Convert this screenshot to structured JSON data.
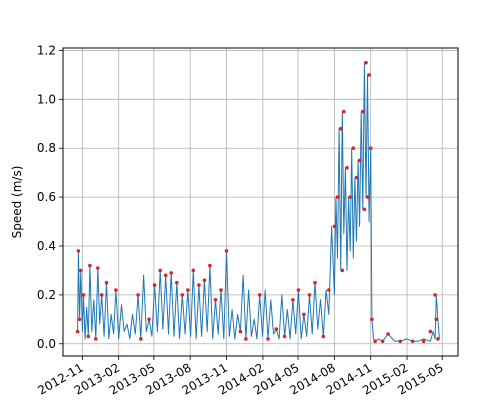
{
  "chart_data": {
    "type": "line",
    "title": "",
    "xlabel": "",
    "ylabel": "Speed (m/s)",
    "x_type": "date",
    "xlim": [
      "2012-09-13",
      "2015-06-10"
    ],
    "ylim": [
      -0.05,
      1.21
    ],
    "grid": true,
    "x_tick_labels": [
      "2012-11",
      "2013-02",
      "2013-05",
      "2013-08",
      "2013-11",
      "2014-02",
      "2014-05",
      "2014-08",
      "2014-11",
      "2015-02",
      "2015-05"
    ],
    "x_tick_values": [
      "2012-11-01",
      "2013-02-01",
      "2013-05-01",
      "2013-08-01",
      "2013-11-01",
      "2014-02-01",
      "2014-05-01",
      "2014-08-01",
      "2014-11-01",
      "2015-02-01",
      "2015-05-01"
    ],
    "y_ticks": [
      0.0,
      0.2,
      0.4,
      0.6,
      0.8,
      1.0,
      1.2
    ],
    "y_tick_labels": [
      "0.0",
      "0.2",
      "0.4",
      "0.6",
      "0.8",
      "1.0",
      "1.2"
    ],
    "series": [
      {
        "style": "line",
        "color": "#1f77b4",
        "x": [
          "2012-10-20",
          "2012-10-22",
          "2012-10-25",
          "2012-10-28",
          "2012-11-01",
          "2012-11-04",
          "2012-11-08",
          "2012-11-12",
          "2012-11-16",
          "2012-11-20",
          "2012-11-25",
          "2012-11-30",
          "2012-12-05",
          "2012-12-10",
          "2012-12-15",
          "2012-12-20",
          "2012-12-26",
          "2013-01-01",
          "2013-01-07",
          "2013-01-13",
          "2013-01-19",
          "2013-01-25",
          "2013-02-01",
          "2013-02-08",
          "2013-02-15",
          "2013-02-22",
          "2013-03-01",
          "2013-03-08",
          "2013-03-15",
          "2013-03-22",
          "2013-03-29",
          "2013-04-05",
          "2013-04-12",
          "2013-04-19",
          "2013-04-26",
          "2013-05-03",
          "2013-05-10",
          "2013-05-17",
          "2013-05-24",
          "2013-05-31",
          "2013-06-07",
          "2013-06-14",
          "2013-06-21",
          "2013-06-28",
          "2013-07-05",
          "2013-07-12",
          "2013-07-19",
          "2013-07-26",
          "2013-08-02",
          "2013-08-09",
          "2013-08-16",
          "2013-08-23",
          "2013-08-30",
          "2013-09-06",
          "2013-09-13",
          "2013-09-20",
          "2013-09-27",
          "2013-10-04",
          "2013-10-11",
          "2013-10-18",
          "2013-10-25",
          "2013-11-01",
          "2013-11-08",
          "2013-11-15",
          "2013-11-22",
          "2013-11-29",
          "2013-12-06",
          "2013-12-13",
          "2013-12-20",
          "2013-12-27",
          "2014-01-03",
          "2014-01-10",
          "2014-01-17",
          "2014-01-24",
          "2014-01-31",
          "2014-02-07",
          "2014-02-14",
          "2014-02-21",
          "2014-02-28",
          "2014-03-07",
          "2014-03-14",
          "2014-03-21",
          "2014-03-28",
          "2014-04-04",
          "2014-04-11",
          "2014-04-18",
          "2014-04-25",
          "2014-05-02",
          "2014-05-09",
          "2014-05-16",
          "2014-05-23",
          "2014-05-30",
          "2014-06-06",
          "2014-06-13",
          "2014-06-20",
          "2014-06-27",
          "2014-07-04",
          "2014-07-11",
          "2014-07-18",
          "2014-07-25",
          "2014-08-01",
          "2014-08-05",
          "2014-08-09",
          "2014-08-13",
          "2014-08-17",
          "2014-08-21",
          "2014-08-25",
          "2014-08-29",
          "2014-09-02",
          "2014-09-06",
          "2014-09-10",
          "2014-09-14",
          "2014-09-18",
          "2014-09-22",
          "2014-09-26",
          "2014-09-30",
          "2014-10-04",
          "2014-10-08",
          "2014-10-12",
          "2014-10-16",
          "2014-10-20",
          "2014-10-24",
          "2014-10-28",
          "2014-11-01",
          "2014-11-04",
          "2014-11-08",
          "2014-11-12",
          "2014-11-20",
          "2014-12-01",
          "2014-12-15",
          "2015-01-01",
          "2015-01-15",
          "2015-02-01",
          "2015-02-15",
          "2015-03-01",
          "2015-03-15",
          "2015-04-01",
          "2015-04-08",
          "2015-04-13",
          "2015-04-16",
          "2015-04-20",
          "2015-04-24"
        ],
        "y": [
          0.05,
          0.38,
          0.1,
          0.3,
          0.05,
          0.2,
          0.02,
          0.15,
          0.03,
          0.32,
          0.05,
          0.18,
          0.02,
          0.31,
          0.08,
          0.2,
          0.03,
          0.25,
          0.02,
          0.12,
          0.04,
          0.22,
          0.02,
          0.16,
          0.05,
          0.08,
          0.02,
          0.12,
          0.04,
          0.2,
          0.02,
          0.28,
          0.05,
          0.1,
          0.03,
          0.24,
          0.05,
          0.3,
          0.06,
          0.28,
          0.04,
          0.29,
          0.03,
          0.25,
          0.02,
          0.2,
          0.04,
          0.22,
          0.03,
          0.3,
          0.02,
          0.24,
          0.03,
          0.26,
          0.05,
          0.32,
          0.02,
          0.18,
          0.04,
          0.22,
          0.02,
          0.38,
          0.03,
          0.14,
          0.02,
          0.12,
          0.05,
          0.28,
          0.02,
          0.22,
          0.03,
          0.1,
          0.02,
          0.2,
          0.03,
          0.22,
          0.02,
          0.18,
          0.04,
          0.06,
          0.02,
          0.2,
          0.03,
          0.14,
          0.02,
          0.18,
          0.04,
          0.22,
          0.02,
          0.12,
          0.03,
          0.2,
          0.04,
          0.25,
          0.06,
          0.18,
          0.03,
          0.22,
          0.12,
          0.48,
          0.2,
          0.6,
          0.35,
          0.88,
          0.3,
          0.95,
          0.45,
          0.72,
          0.3,
          0.6,
          0.38,
          0.8,
          0.35,
          0.68,
          0.42,
          0.75,
          0.48,
          0.95,
          0.55,
          1.15,
          0.6,
          1.1,
          0.5,
          0.8,
          0.1,
          0.02,
          0.01,
          0.02,
          0.01,
          0.04,
          0.01,
          0.01,
          0.02,
          0.01,
          0.01,
          0.02,
          0.01,
          0.05,
          0.02,
          0.2,
          0.1,
          0.02
        ]
      },
      {
        "style": "scatter",
        "color": "#d62728",
        "x": [
          "2012-10-20",
          "2012-10-22",
          "2012-10-25",
          "2012-10-28",
          "2012-11-04",
          "2012-11-16",
          "2012-11-20",
          "2012-12-05",
          "2012-12-10",
          "2012-12-20",
          "2013-01-01",
          "2013-01-25",
          "2013-03-22",
          "2013-03-29",
          "2013-04-19",
          "2013-05-03",
          "2013-05-17",
          "2013-05-31",
          "2013-06-14",
          "2013-06-28",
          "2013-07-12",
          "2013-07-26",
          "2013-08-09",
          "2013-08-23",
          "2013-09-06",
          "2013-09-20",
          "2013-10-04",
          "2013-10-18",
          "2013-11-01",
          "2013-12-06",
          "2013-12-20",
          "2014-01-24",
          "2014-02-14",
          "2014-03-07",
          "2014-03-28",
          "2014-04-18",
          "2014-05-02",
          "2014-05-16",
          "2014-05-30",
          "2014-06-13",
          "2014-07-04",
          "2014-07-18",
          "2014-08-01",
          "2014-08-09",
          "2014-08-17",
          "2014-08-21",
          "2014-08-25",
          "2014-09-02",
          "2014-09-10",
          "2014-09-18",
          "2014-09-26",
          "2014-10-04",
          "2014-10-12",
          "2014-10-16",
          "2014-10-20",
          "2014-10-24",
          "2014-10-28",
          "2014-11-01",
          "2014-11-04",
          "2014-11-12",
          "2014-12-01",
          "2014-12-15",
          "2015-01-15",
          "2015-02-15",
          "2015-03-15",
          "2015-04-01",
          "2015-04-13",
          "2015-04-16",
          "2015-04-20"
        ],
        "y": [
          0.05,
          0.38,
          0.1,
          0.3,
          0.2,
          0.03,
          0.32,
          0.02,
          0.31,
          0.2,
          0.25,
          0.22,
          0.2,
          0.02,
          0.1,
          0.24,
          0.3,
          0.28,
          0.29,
          0.25,
          0.2,
          0.22,
          0.3,
          0.24,
          0.26,
          0.32,
          0.18,
          0.22,
          0.38,
          0.05,
          0.02,
          0.2,
          0.02,
          0.06,
          0.03,
          0.18,
          0.22,
          0.12,
          0.2,
          0.25,
          0.03,
          0.22,
          0.48,
          0.6,
          0.88,
          0.3,
          0.95,
          0.72,
          0.6,
          0.8,
          0.68,
          0.75,
          0.95,
          0.55,
          1.15,
          0.6,
          1.1,
          0.8,
          0.1,
          0.01,
          0.01,
          0.04,
          0.01,
          0.01,
          0.01,
          0.05,
          0.2,
          0.1,
          0.02
        ]
      }
    ]
  }
}
